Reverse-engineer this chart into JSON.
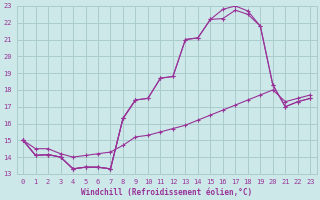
{
  "bg_color": "#cce8e8",
  "grid_color": "#aacccc",
  "line_color": "#993399",
  "xlabel": "Windchill (Refroidissement éolien,°C)",
  "xlim": [
    -0.5,
    23.5
  ],
  "ylim": [
    13,
    23
  ],
  "xticks": [
    0,
    1,
    2,
    3,
    4,
    5,
    6,
    7,
    8,
    9,
    10,
    11,
    12,
    13,
    14,
    15,
    16,
    17,
    18,
    19,
    20,
    21,
    22,
    23
  ],
  "yticks": [
    13,
    14,
    15,
    16,
    17,
    18,
    19,
    20,
    21,
    22,
    23
  ],
  "line_jagged_x": [
    0,
    1,
    2,
    3,
    4,
    5,
    6,
    7,
    8,
    9
  ],
  "line_jagged_y": [
    15,
    14.1,
    14.15,
    14.0,
    13.3,
    13.4,
    13.4,
    13.3,
    16.3,
    17.4
  ],
  "line_upper1_x": [
    0,
    1,
    2,
    3,
    4,
    5,
    6,
    7,
    8,
    9,
    10,
    11,
    12,
    13,
    14,
    15,
    16,
    17,
    18,
    19,
    20,
    21,
    22,
    23
  ],
  "line_upper1_y": [
    15,
    14.1,
    14.15,
    14.0,
    13.3,
    13.4,
    13.4,
    13.3,
    16.3,
    17.4,
    17.5,
    18.7,
    18.8,
    21.0,
    21.1,
    22.2,
    22.25,
    22.75,
    22.5,
    21.8,
    18.3,
    17.0,
    17.3,
    17.5
  ],
  "line_upper2_x": [
    0,
    1,
    2,
    3,
    4,
    5,
    6,
    7,
    8,
    9,
    10,
    11,
    12,
    13,
    14,
    15,
    16,
    17,
    18,
    19,
    20,
    21,
    22,
    23
  ],
  "line_upper2_y": [
    15,
    14.1,
    14.15,
    14.0,
    13.3,
    13.4,
    13.4,
    13.3,
    16.3,
    17.4,
    17.5,
    18.7,
    18.8,
    21.0,
    21.1,
    22.2,
    22.8,
    23.0,
    22.7,
    21.8,
    18.3,
    17.0,
    17.3,
    17.5
  ],
  "line_diag_x": [
    0,
    1,
    2,
    3,
    4,
    5,
    6,
    7,
    8,
    9,
    10,
    11,
    12,
    13,
    14,
    15,
    16,
    17,
    18,
    19,
    20,
    21,
    22,
    23
  ],
  "line_diag_y": [
    15.0,
    14.5,
    14.5,
    14.2,
    14.0,
    14.1,
    14.2,
    14.3,
    14.7,
    15.2,
    15.3,
    15.5,
    15.7,
    15.9,
    16.2,
    16.5,
    16.8,
    17.1,
    17.4,
    17.7,
    18.0,
    17.3,
    17.5,
    17.7
  ]
}
